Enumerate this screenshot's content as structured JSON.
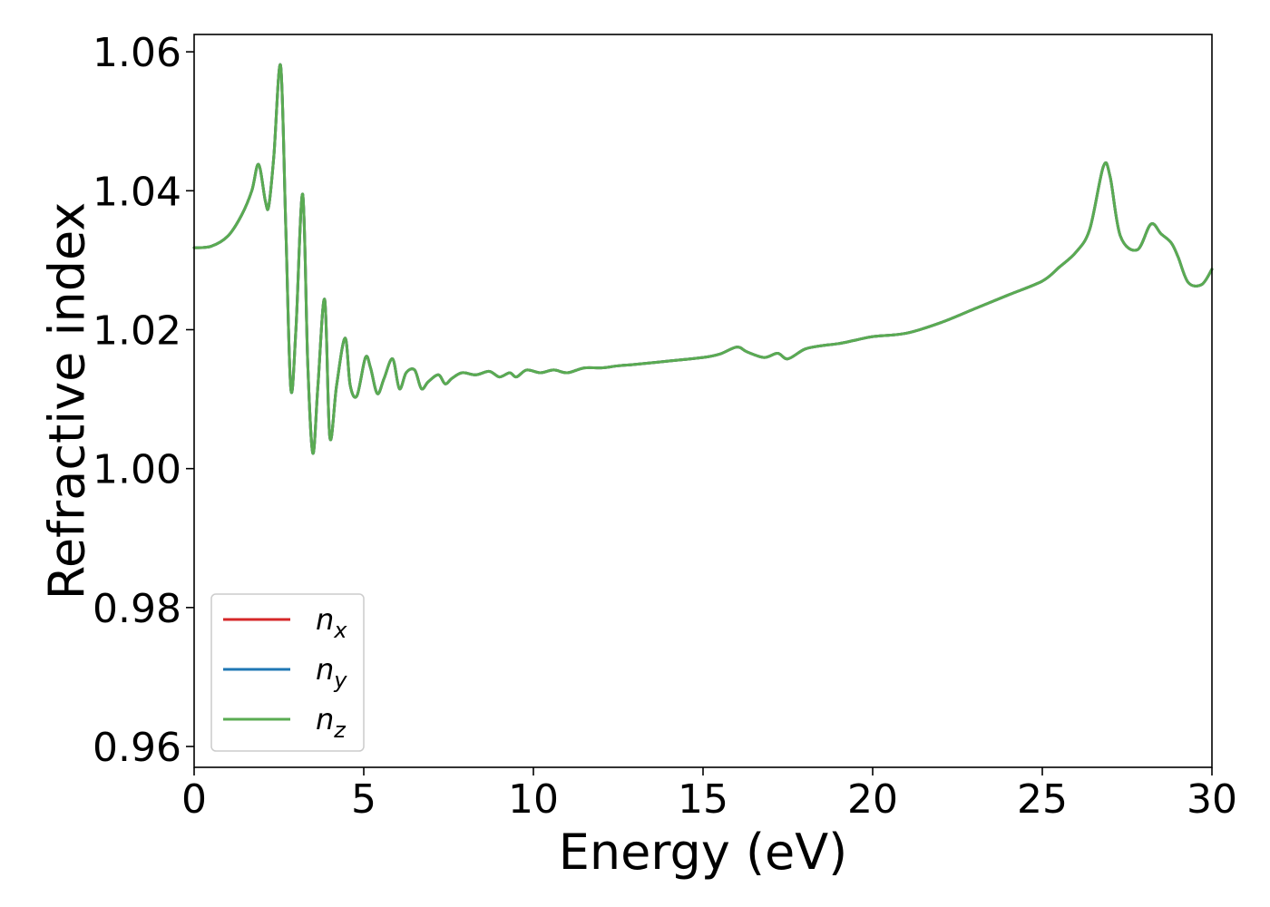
{
  "chart_data": {
    "type": "line",
    "title": "",
    "xlabel": "Energy (eV)",
    "ylabel": "Refractive index",
    "xlim": [
      0,
      30
    ],
    "ylim": [
      0.957,
      1.0625
    ],
    "xticks": [
      0,
      5,
      10,
      15,
      20,
      25,
      30
    ],
    "xtick_labels": [
      "0",
      "5",
      "10",
      "15",
      "20",
      "25",
      "30"
    ],
    "yticks": [
      0.96,
      0.98,
      1.0,
      1.02,
      1.04,
      1.06
    ],
    "ytick_labels": [
      "0.96",
      "0.98",
      "1.00",
      "1.02",
      "1.04",
      "1.06"
    ],
    "grid": false,
    "legend_position": "lower-left",
    "x": [
      0,
      0.5,
      1.0,
      1.4,
      1.7,
      1.9,
      2.1,
      2.2,
      2.35,
      2.55,
      2.7,
      2.85,
      3.0,
      3.2,
      3.35,
      3.5,
      3.65,
      3.85,
      4.0,
      4.2,
      4.45,
      4.6,
      4.8,
      5.05,
      5.2,
      5.4,
      5.6,
      5.85,
      6.05,
      6.25,
      6.5,
      6.7,
      6.9,
      7.2,
      7.4,
      7.6,
      7.9,
      8.3,
      8.7,
      9.0,
      9.3,
      9.5,
      9.8,
      10.2,
      10.6,
      11.0,
      11.5,
      12.0,
      12.5,
      13.0,
      14.0,
      15.0,
      15.5,
      16.0,
      16.3,
      16.8,
      17.2,
      17.5,
      18.0,
      18.5,
      19.0,
      19.5,
      20.0,
      21.0,
      22.0,
      23.0,
      24.0,
      25.0,
      25.5,
      26.0,
      26.4,
      26.8,
      27.0,
      27.3,
      27.8,
      28.2,
      28.5,
      28.8,
      29.0,
      29.3,
      29.7,
      30.0
    ],
    "series": [
      {
        "name": "n_x",
        "color": "#d62728",
        "values": [
          1.0318,
          1.032,
          1.0335,
          1.0365,
          1.04,
          1.0438,
          1.0385,
          1.0378,
          1.045,
          1.058,
          1.035,
          1.0115,
          1.02,
          1.0395,
          1.015,
          1.0022,
          1.012,
          1.0243,
          1.0045,
          1.012,
          1.0188,
          1.012,
          1.0105,
          1.016,
          1.0145,
          1.0108,
          1.013,
          1.0158,
          1.0115,
          1.0138,
          1.0142,
          1.0115,
          1.0125,
          1.0135,
          1.0122,
          1.013,
          1.0138,
          1.0135,
          1.014,
          1.0132,
          1.0138,
          1.0132,
          1.0142,
          1.0138,
          1.0142,
          1.0138,
          1.0145,
          1.0145,
          1.0148,
          1.015,
          1.0155,
          1.016,
          1.0165,
          1.0175,
          1.0168,
          1.016,
          1.0166,
          1.0158,
          1.0172,
          1.0177,
          1.018,
          1.0185,
          1.019,
          1.0195,
          1.021,
          1.023,
          1.025,
          1.027,
          1.029,
          1.0312,
          1.0345,
          1.0435,
          1.042,
          1.0335,
          1.0315,
          1.0352,
          1.0338,
          1.0325,
          1.0305,
          1.0268,
          1.0265,
          1.0287
        ]
      },
      {
        "name": "n_y",
        "color": "#1f77b4",
        "values": [
          1.0318,
          1.032,
          1.0335,
          1.0365,
          1.04,
          1.0438,
          1.0385,
          1.0378,
          1.045,
          1.058,
          1.035,
          1.0115,
          1.02,
          1.0395,
          1.015,
          1.0022,
          1.012,
          1.0243,
          1.0045,
          1.012,
          1.0188,
          1.012,
          1.0105,
          1.016,
          1.0145,
          1.0108,
          1.013,
          1.0158,
          1.0115,
          1.0138,
          1.0142,
          1.0115,
          1.0125,
          1.0135,
          1.0122,
          1.013,
          1.0138,
          1.0135,
          1.014,
          1.0132,
          1.0138,
          1.0132,
          1.0142,
          1.0138,
          1.0142,
          1.0138,
          1.0145,
          1.0145,
          1.0148,
          1.015,
          1.0155,
          1.016,
          1.0165,
          1.0175,
          1.0168,
          1.016,
          1.0166,
          1.0158,
          1.0172,
          1.0177,
          1.018,
          1.0185,
          1.019,
          1.0195,
          1.021,
          1.023,
          1.025,
          1.027,
          1.029,
          1.0312,
          1.0345,
          1.0435,
          1.042,
          1.0335,
          1.0315,
          1.0352,
          1.0338,
          1.0325,
          1.0305,
          1.0268,
          1.0265,
          1.0287
        ]
      },
      {
        "name": "n_z",
        "color": "#5aab52",
        "values": [
          1.0318,
          1.032,
          1.0335,
          1.0365,
          1.04,
          1.0438,
          1.0385,
          1.0378,
          1.045,
          1.058,
          1.035,
          1.0115,
          1.02,
          1.0395,
          1.015,
          1.0022,
          1.012,
          1.0243,
          1.0045,
          1.012,
          1.0188,
          1.012,
          1.0105,
          1.016,
          1.0145,
          1.0108,
          1.013,
          1.0158,
          1.0115,
          1.0138,
          1.0142,
          1.0115,
          1.0125,
          1.0135,
          1.0122,
          1.013,
          1.0138,
          1.0135,
          1.014,
          1.0132,
          1.0138,
          1.0132,
          1.0142,
          1.0138,
          1.0142,
          1.0138,
          1.0145,
          1.0145,
          1.0148,
          1.015,
          1.0155,
          1.016,
          1.0165,
          1.0175,
          1.0168,
          1.016,
          1.0166,
          1.0158,
          1.0172,
          1.0177,
          1.018,
          1.0185,
          1.019,
          1.0195,
          1.021,
          1.023,
          1.025,
          1.027,
          1.029,
          1.0312,
          1.0345,
          1.0435,
          1.042,
          1.0335,
          1.0315,
          1.0352,
          1.0338,
          1.0325,
          1.0305,
          1.0268,
          1.0265,
          1.0287
        ]
      }
    ],
    "legend": [
      {
        "base": "n",
        "sub": "x",
        "color": "#d62728"
      },
      {
        "base": "n",
        "sub": "y",
        "color": "#1f77b4"
      },
      {
        "base": "n",
        "sub": "z",
        "color": "#5aab52"
      }
    ]
  }
}
